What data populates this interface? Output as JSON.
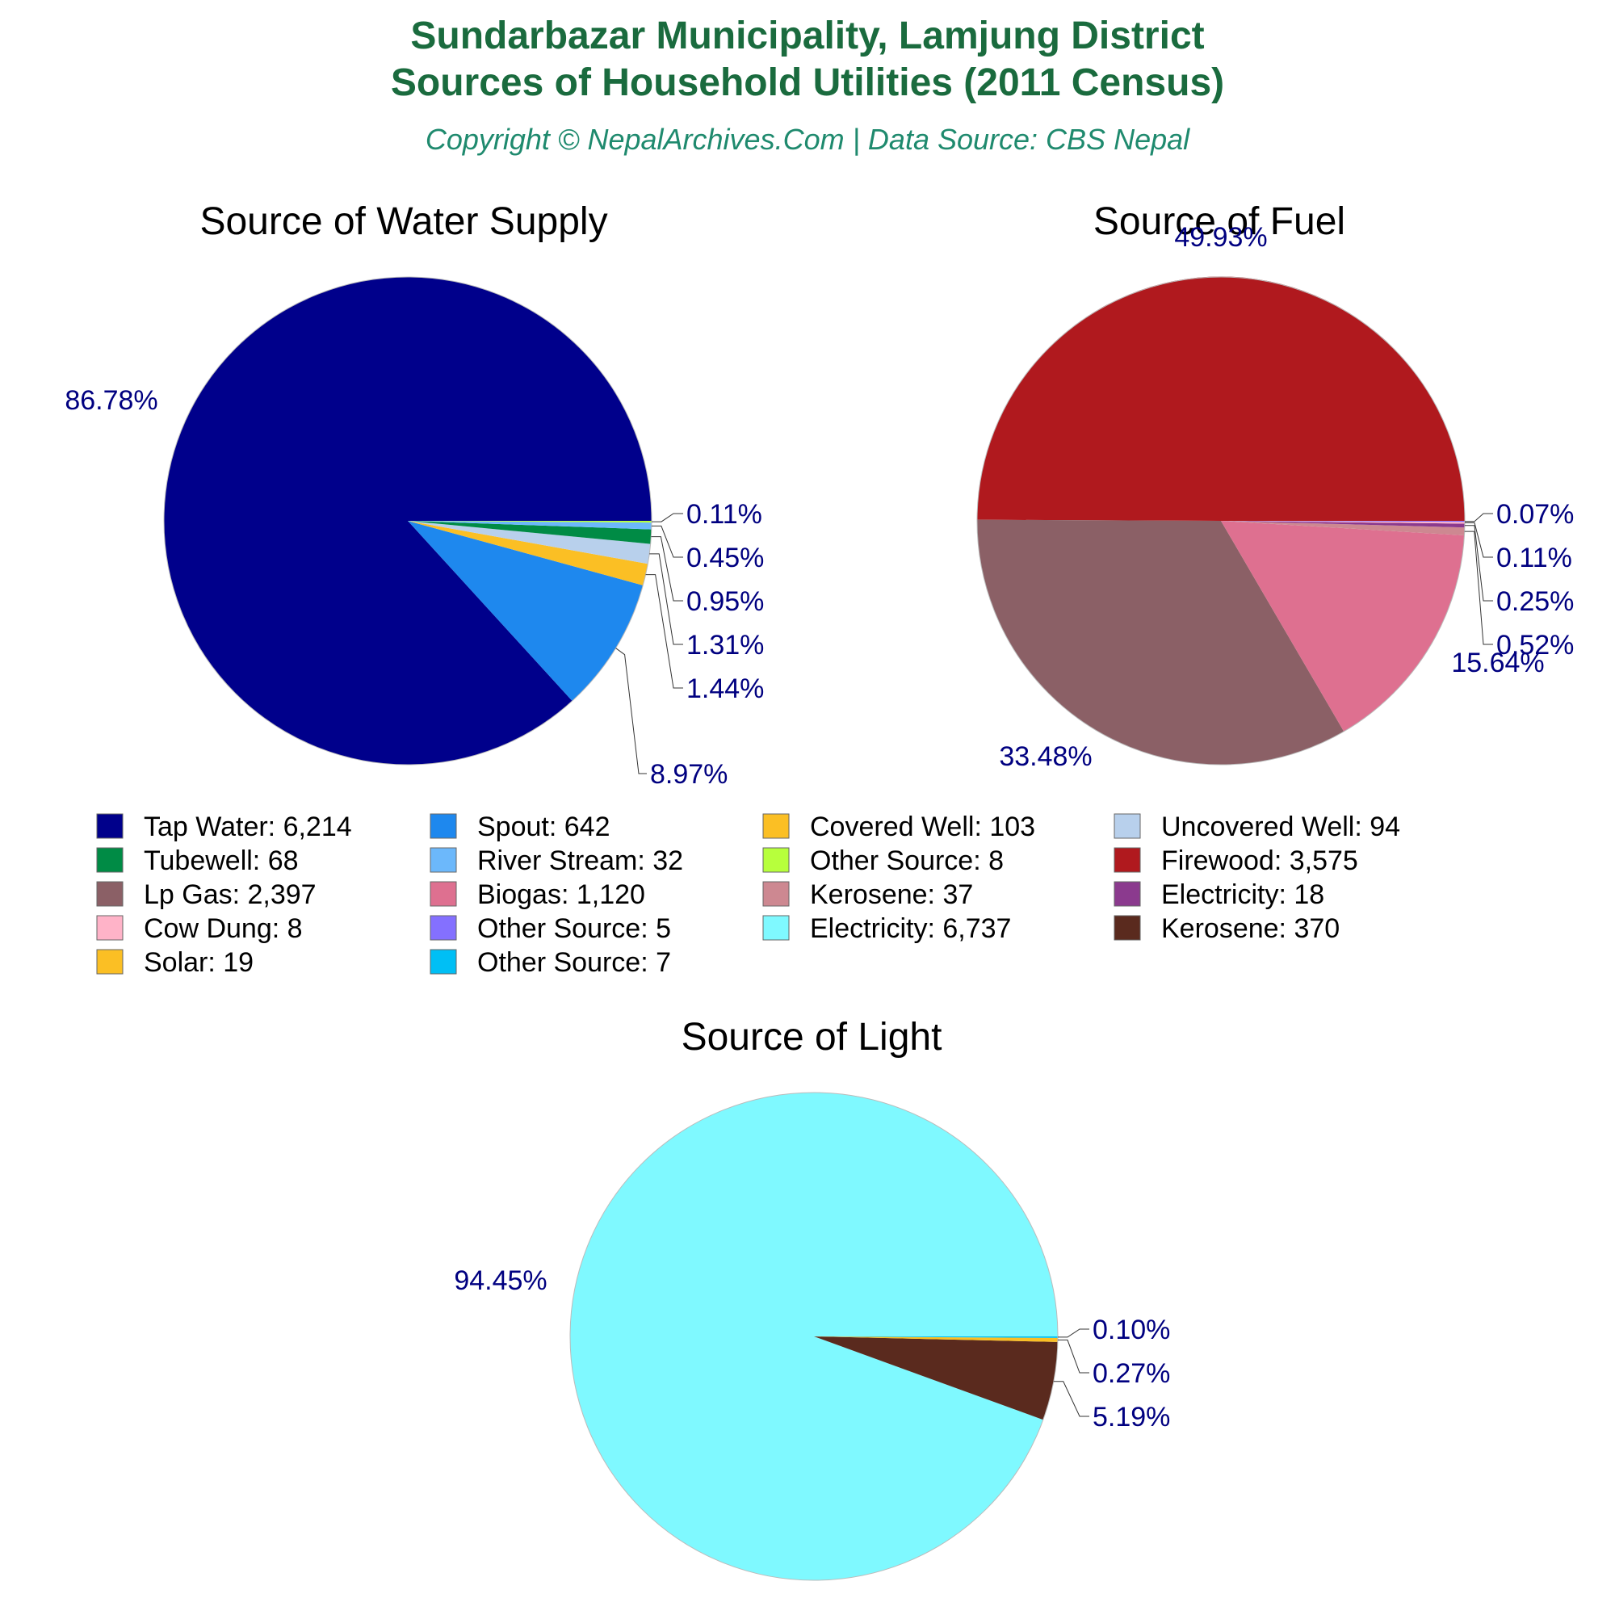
{
  "header": {
    "title_line1": "Sundarbazar Municipality, Lamjung District",
    "title_line2": "Sources of Household Utilities (2011 Census)",
    "subtitle": "Copyright © NepalArchives.Com | Data Source: CBS Nepal"
  },
  "chart_data": [
    {
      "type": "pie",
      "title": "Source of Water Supply",
      "slices": [
        {
          "label": "Tap Water",
          "value": 6214,
          "percent": "86.78%",
          "color": "#00008b"
        },
        {
          "label": "Spout",
          "value": 642,
          "percent": "8.97%",
          "color": "#1e88ee"
        },
        {
          "label": "Covered Well",
          "value": 103,
          "percent": "1.44%",
          "color": "#fbbf24"
        },
        {
          "label": "Uncovered Well",
          "value": 94,
          "percent": "1.31%",
          "color": "#b8d0ec"
        },
        {
          "label": "Tubewell",
          "value": 68,
          "percent": "0.95%",
          "color": "#008b45"
        },
        {
          "label": "River Stream",
          "value": 32,
          "percent": "0.45%",
          "color": "#6cb8fb"
        },
        {
          "label": "Other Source",
          "value": 8,
          "percent": "0.11%",
          "color": "#b7ff3c"
        }
      ]
    },
    {
      "type": "pie",
      "title": "Source of Fuel",
      "slices": [
        {
          "label": "Firewood",
          "value": 3575,
          "percent": "49.93%",
          "color": "#b0191e"
        },
        {
          "label": "Lp Gas",
          "value": 2397,
          "percent": "33.48%",
          "color": "#8b6066"
        },
        {
          "label": "Biogas",
          "value": 1120,
          "percent": "15.64%",
          "color": "#de7090"
        },
        {
          "label": "Kerosene",
          "value": 37,
          "percent": "0.52%",
          "color": "#cd8891"
        },
        {
          "label": "Electricity",
          "value": 18,
          "percent": "0.25%",
          "color": "#8b3a8e"
        },
        {
          "label": "Cow Dung",
          "value": 8,
          "percent": "0.11%",
          "color": "#ffb3c8"
        },
        {
          "label": "Other Source",
          "value": 5,
          "percent": "0.07%",
          "color": "#8470ff"
        }
      ]
    },
    {
      "type": "pie",
      "title": "Source of Light",
      "slices": [
        {
          "label": "Electricity",
          "value": 6737,
          "percent": "94.45%",
          "color": "#7ff9ff"
        },
        {
          "label": "Kerosene",
          "value": 370,
          "percent": "5.19%",
          "color": "#5a2a1e"
        },
        {
          "label": "Solar",
          "value": 19,
          "percent": "0.27%",
          "color": "#fbbf24"
        },
        {
          "label": "Other Source",
          "value": 7,
          "percent": "0.10%",
          "color": "#00bff5"
        }
      ]
    }
  ],
  "legend": {
    "items": [
      {
        "text": "Tap Water: 6,214",
        "color": "#00008b"
      },
      {
        "text": "Spout: 642",
        "color": "#1e88ee"
      },
      {
        "text": "Covered Well: 103",
        "color": "#fbbf24"
      },
      {
        "text": "Uncovered Well: 94",
        "color": "#b8d0ec"
      },
      {
        "text": "Tubewell: 68",
        "color": "#008b45"
      },
      {
        "text": "River Stream: 32",
        "color": "#6cb8fb"
      },
      {
        "text": "Other Source: 8",
        "color": "#b7ff3c"
      },
      {
        "text": "Firewood: 3,575",
        "color": "#b0191e"
      },
      {
        "text": "Lp Gas: 2,397",
        "color": "#8b6066"
      },
      {
        "text": "Biogas: 1,120",
        "color": "#de7090"
      },
      {
        "text": "Kerosene: 37",
        "color": "#cd8891"
      },
      {
        "text": "Electricity: 18",
        "color": "#8b3a8e"
      },
      {
        "text": "Cow Dung: 8",
        "color": "#ffb3c8"
      },
      {
        "text": "Other Source: 5",
        "color": "#8470ff"
      },
      {
        "text": "Electricity: 6,737",
        "color": "#7ff9ff"
      },
      {
        "text": "Kerosene: 370",
        "color": "#5a2a1e"
      },
      {
        "text": "Solar: 19",
        "color": "#fbbf24"
      },
      {
        "text": "Other Source: 7",
        "color": "#00bff5"
      }
    ]
  }
}
